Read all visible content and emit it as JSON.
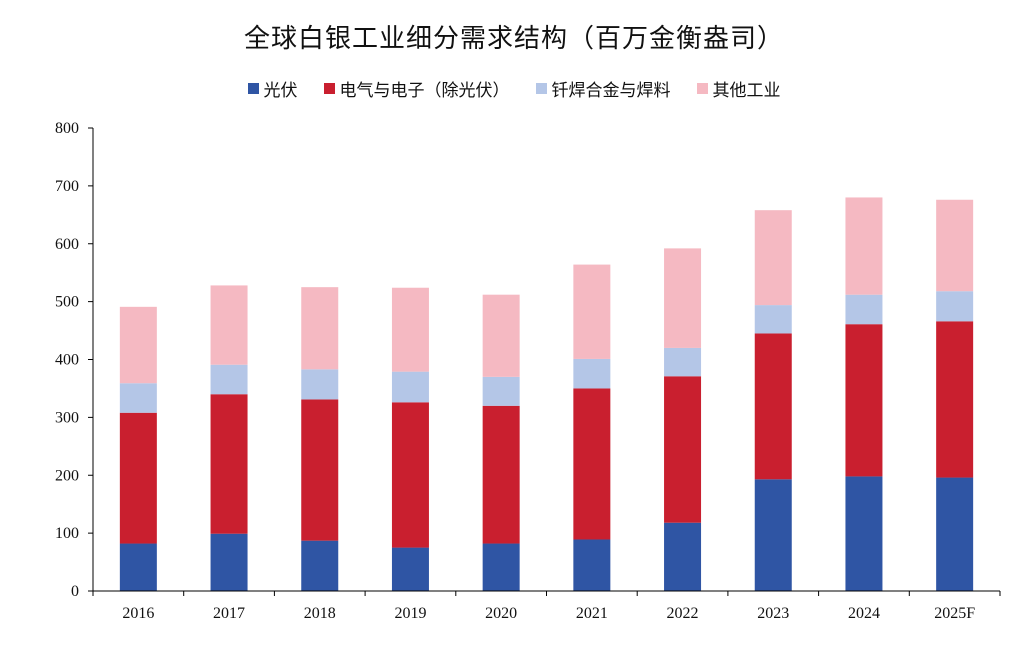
{
  "chart_data": {
    "type": "bar",
    "stacked": true,
    "title": "全球白银工业细分需求结构（百万金衡盎司）",
    "xlabel": "",
    "ylabel": "",
    "ylim": [
      0,
      800
    ],
    "yticks": [
      0,
      100,
      200,
      300,
      400,
      500,
      600,
      700,
      800
    ],
    "legend_position": "top-center",
    "grid": false,
    "categories": [
      "2016",
      "2017",
      "2018",
      "2019",
      "2020",
      "2021",
      "2022",
      "2023",
      "2024",
      "2025F"
    ],
    "series": [
      {
        "name": "光伏",
        "color": "#2f55a4",
        "values": [
          82,
          99,
          87,
          75,
          82,
          89,
          118,
          193,
          198,
          196
        ]
      },
      {
        "name": "电气与电子（除光伏）",
        "color": "#c91f2f",
        "values": [
          226,
          241,
          244,
          251,
          238,
          261,
          253,
          252,
          263,
          270
        ]
      },
      {
        "name": "钎焊合金与焊料",
        "color": "#b4c6e7",
        "values": [
          51,
          51,
          52,
          53,
          50,
          51,
          49,
          49,
          51,
          52
        ]
      },
      {
        "name": "其他工业",
        "color": "#f5b9c2",
        "values": [
          132,
          137,
          142,
          145,
          142,
          163,
          172,
          164,
          168,
          158
        ]
      }
    ]
  }
}
